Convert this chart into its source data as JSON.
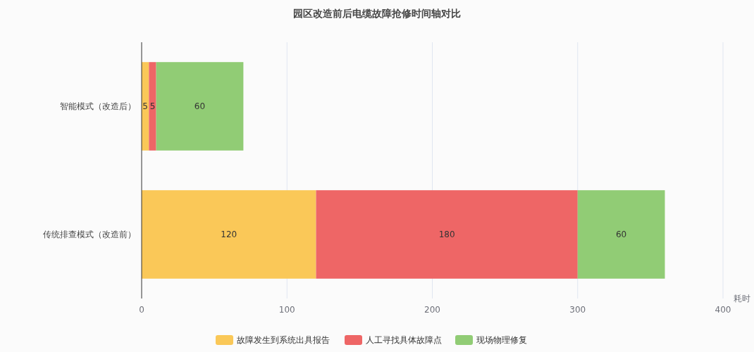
{
  "chart_data": {
    "type": "bar",
    "title": "园区改造前后电缆故障抢修时间轴对比",
    "xlabel": "耗时",
    "orientation": "horizontal",
    "stacked": true,
    "categories": [
      "智能模式（改造后）",
      "传统排查模式（改造前）"
    ],
    "series": [
      {
        "name": "故障发生到系统出具报告",
        "color": "#fac858",
        "values": [
          5,
          120
        ]
      },
      {
        "name": "人工寻找具体故障点",
        "color": "#ee6666",
        "values": [
          5,
          180
        ]
      },
      {
        "name": "现场物理修复",
        "color": "#91cc75",
        "values": [
          60,
          60
        ]
      }
    ],
    "xlim": [
      0,
      400
    ],
    "xticks": [
      0,
      100,
      200,
      300,
      400
    ],
    "grid": "x",
    "legend": "bottom",
    "data_labels": true
  }
}
